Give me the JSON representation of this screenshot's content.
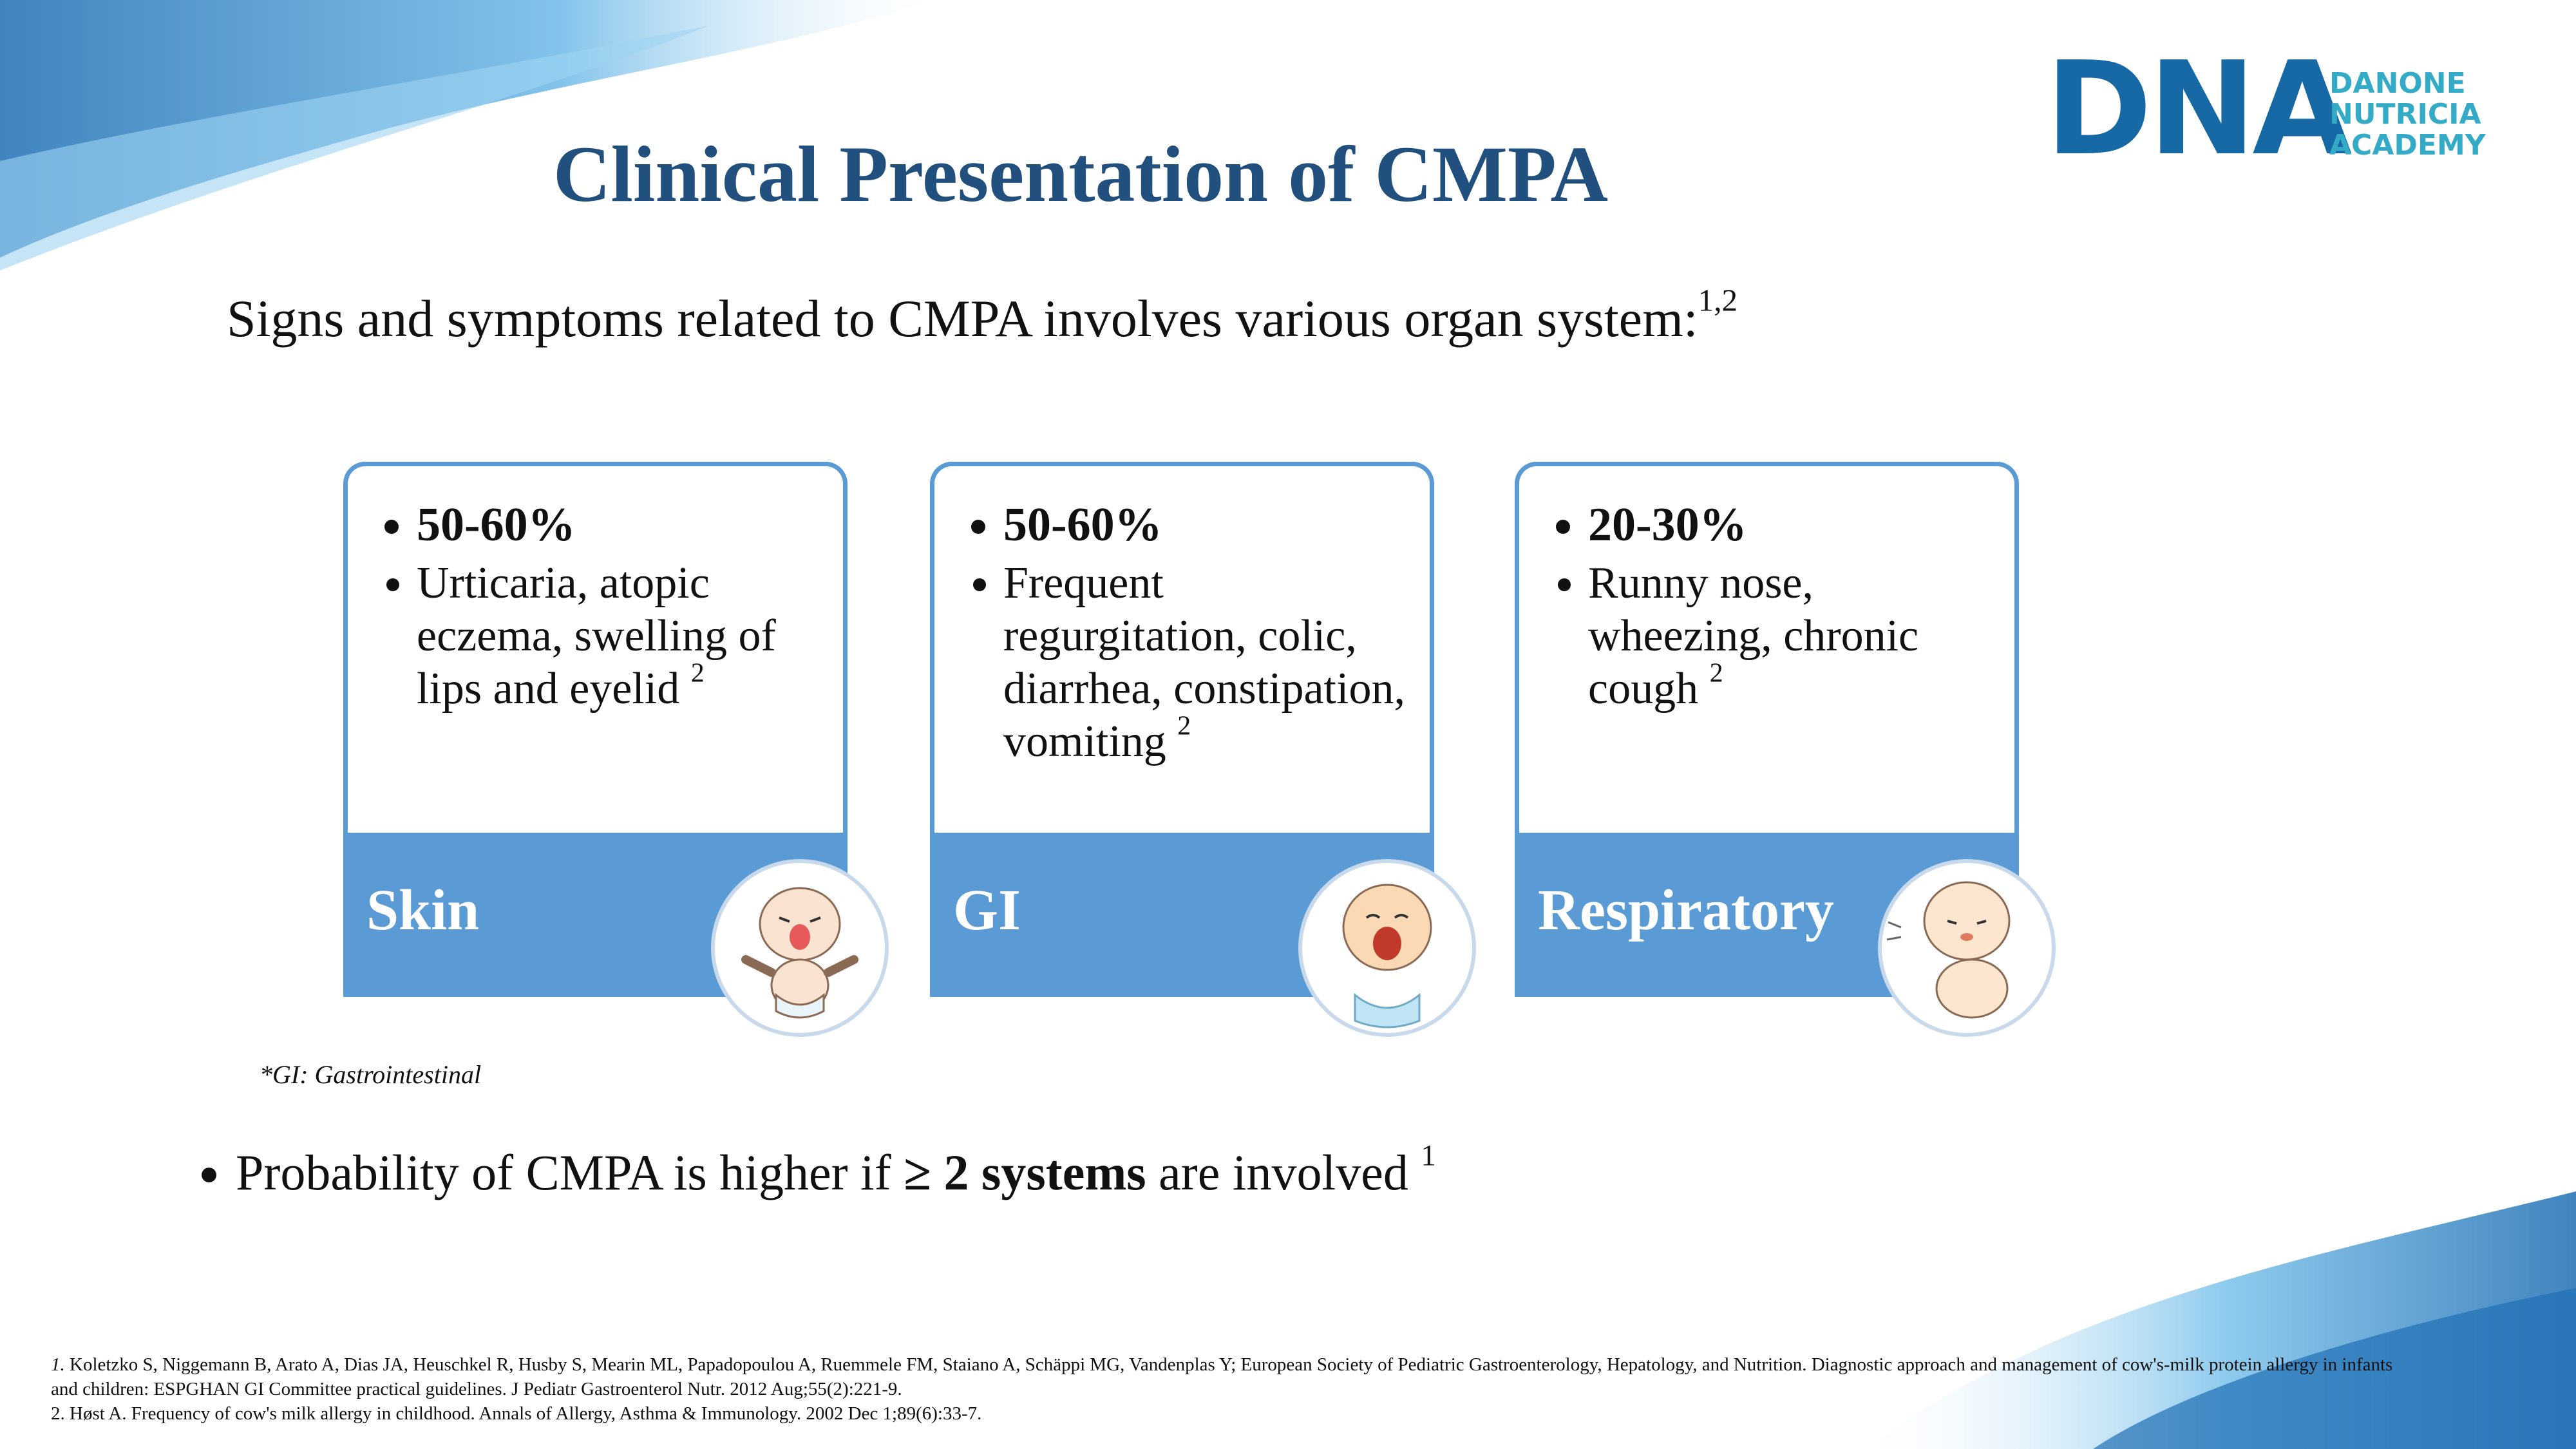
{
  "header": {
    "title": "Clinical Presentation of CMPA",
    "subtitle": "Signs and symptoms related to CMPA involves various organ system:",
    "subtitle_sup": "1,2"
  },
  "logo": {
    "mark": "DNA",
    "lines": [
      "DANONE",
      "NUTRICIA",
      "ACADEMY"
    ]
  },
  "cards": [
    {
      "percent": "50-60%",
      "text": "Urticaria, atopic eczema, swelling of lips and eyelid",
      "sup": "2",
      "label": "Skin"
    },
    {
      "percent": "50-60%",
      "text": "Frequent regurgitation, colic, diarrhea, constipation, vomiting",
      "sup": "2",
      "label": "GI"
    },
    {
      "percent": "20-30%",
      "text": "Runny nose, wheezing, chronic cough",
      "sup": "2",
      "label": "Respiratory"
    }
  ],
  "note": "*GI: Gastrointestinal",
  "bullet": {
    "before": "Probability of CMPA is higher if",
    "bold": "≥ 2 systems",
    "after": "are involved",
    "sup": "1"
  },
  "references": [
    {
      "number": "1.",
      "text": "Koletzko S, Niggemann B, Arato A, Dias JA, Heuschkel R, Husby S, Mearin ML, Papadopoulou A, Ruemmele FM, Staiano A, Schäppi MG, Vandenplas Y; European Society of Pediatric Gastroenterology, Hepatology, and Nutrition. Diagnostic approach and management of cow's-milk protein allergy in infants and children: ESPGHAN GI Committee practical guidelines. J Pediatr Gastroenterol Nutr. 2012 Aug;55(2):221-9."
    },
    {
      "number": "2.",
      "text": "Høst A. Frequency of cow's milk allergy in childhood. Annals of Allergy, Asthma & Immunology. 2002 Dec 1;89(6):33-7."
    }
  ]
}
